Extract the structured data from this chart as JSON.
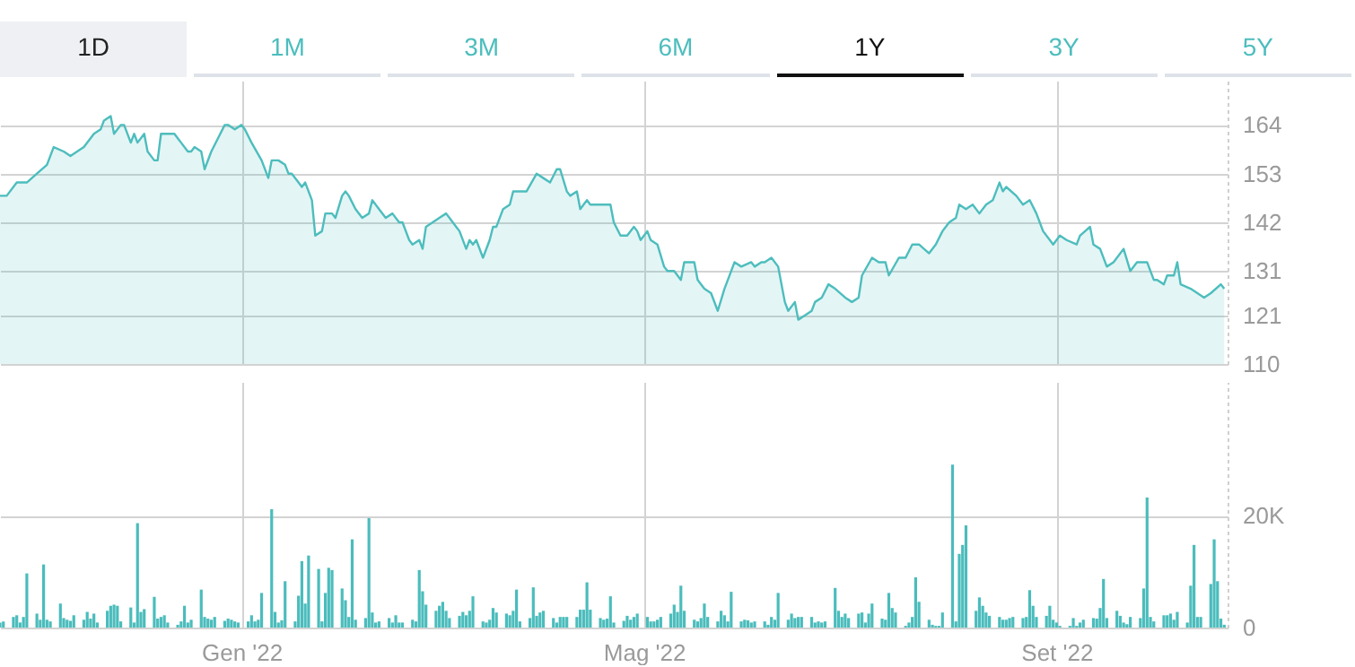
{
  "chart_data": [
    {
      "type": "area",
      "annotations": [
        "1D",
        "1M",
        "3M",
        "6M",
        "1Y",
        "3Y",
        "5Y"
      ],
      "color": "#4dbdbd",
      "x": [
        "2021-10-21",
        "2021-10-23",
        "2021-10-26",
        "2021-10-29",
        "2021-11-01",
        "2021-11-04",
        "2021-11-06",
        "2021-11-09",
        "2021-11-11",
        "2021-11-13",
        "2021-11-15",
        "2021-11-18",
        "2021-11-20",
        "2021-11-21",
        "2021-11-23",
        "2021-11-24",
        "2021-11-26",
        "2021-11-27",
        "2021-11-29",
        "2021-11-30",
        "2021-12-01",
        "2021-12-03",
        "2021-12-04",
        "2021-12-06",
        "2021-12-07",
        "2021-12-08",
        "2021-12-10",
        "2021-12-12",
        "2021-12-13",
        "2021-12-14",
        "2021-12-16",
        "2021-12-17",
        "2021-12-18",
        "2021-12-20",
        "2021-12-21",
        "2021-12-23",
        "2021-12-25",
        "2021-12-27",
        "2021-12-28",
        "2021-12-30",
        "2022-01-01",
        "2022-01-02",
        "2022-01-04",
        "2022-01-07",
        "2022-01-09",
        "2022-01-10",
        "2022-01-12",
        "2022-01-14",
        "2022-01-15",
        "2022-01-16",
        "2022-01-18",
        "2022-01-19",
        "2022-01-20",
        "2022-01-22",
        "2022-01-23",
        "2022-01-25",
        "2022-01-26",
        "2022-01-28",
        "2022-01-29",
        "2022-01-31",
        "2022-02-01",
        "2022-02-02",
        "2022-02-04",
        "2022-02-06",
        "2022-02-08",
        "2022-02-09",
        "2022-02-11",
        "2022-02-13",
        "2022-02-15",
        "2022-02-17",
        "2022-02-18",
        "2022-02-20",
        "2022-02-21",
        "2022-02-23",
        "2022-02-24",
        "2022-02-25",
        "2022-02-27",
        "2022-03-01",
        "2022-03-03",
        "2022-03-04",
        "2022-03-06",
        "2022-03-07",
        "2022-03-09",
        "2022-03-10",
        "2022-03-11",
        "2022-03-12",
        "2022-03-14",
        "2022-03-16",
        "2022-03-17",
        "2022-03-18",
        "2022-03-20",
        "2022-03-22",
        "2022-03-23",
        "2022-03-25",
        "2022-03-27",
        "2022-03-30",
        "2022-04-01",
        "2022-04-03",
        "2022-04-05",
        "2022-04-06",
        "2022-04-08",
        "2022-04-09",
        "2022-04-11",
        "2022-04-12",
        "2022-04-14",
        "2022-04-15",
        "2022-04-17",
        "2022-04-19",
        "2022-04-21",
        "2022-04-22",
        "2022-04-24",
        "2022-04-26",
        "2022-04-28",
        "2022-04-29",
        "2022-04-30",
        "2022-05-02",
        "2022-05-03",
        "2022-05-05",
        "2022-05-07",
        "2022-05-08",
        "2022-05-10",
        "2022-05-12",
        "2022-05-13",
        "2022-05-16",
        "2022-05-17",
        "2022-05-19",
        "2022-05-21",
        "2022-05-23",
        "2022-05-25",
        "2022-05-27",
        "2022-05-28",
        "2022-05-30",
        "2022-06-02",
        "2022-06-03",
        "2022-06-05",
        "2022-06-06",
        "2022-06-08",
        "2022-06-10",
        "2022-06-12",
        "2022-06-13",
        "2022-06-15",
        "2022-06-16",
        "2022-06-18",
        "2022-06-20",
        "2022-06-21",
        "2022-06-23",
        "2022-06-25",
        "2022-06-27",
        "2022-06-30",
        "2022-07-02",
        "2022-07-04",
        "2022-07-05",
        "2022-07-08",
        "2022-07-10",
        "2022-07-12",
        "2022-07-13",
        "2022-07-16",
        "2022-07-18",
        "2022-07-20",
        "2022-07-22",
        "2022-07-25",
        "2022-07-27",
        "2022-07-29",
        "2022-07-31",
        "2022-08-02",
        "2022-08-03",
        "2022-08-05",
        "2022-08-07",
        "2022-08-09",
        "2022-08-11",
        "2022-08-13",
        "2022-08-15",
        "2022-08-16",
        "2022-08-17",
        "2022-08-20",
        "2022-08-22",
        "2022-08-24",
        "2022-08-26",
        "2022-08-28",
        "2022-08-30",
        "2022-08-31",
        "2022-09-02",
        "2022-09-04",
        "2022-09-07",
        "2022-09-08",
        "2022-09-11",
        "2022-09-12",
        "2022-09-14",
        "2022-09-16",
        "2022-09-18",
        "2022-09-21",
        "2022-09-23",
        "2022-09-25",
        "2022-09-28",
        "2022-09-30",
        "2022-10-01",
        "2022-10-03",
        "2022-10-04",
        "2022-10-06",
        "2022-10-07",
        "2022-10-08",
        "2022-10-11",
        "2022-10-13",
        "2022-10-15",
        "2022-10-17",
        "2022-10-20",
        "2022-10-21"
      ],
      "values": [
        148,
        148,
        151,
        151,
        153,
        155,
        159,
        158,
        157,
        158,
        159,
        162,
        163,
        165,
        166,
        162,
        164,
        164,
        160,
        162,
        160,
        162,
        158,
        156,
        156,
        162,
        162,
        162,
        161,
        160,
        158,
        158,
        159,
        158,
        154,
        158,
        161,
        164,
        164,
        163,
        164,
        163,
        160,
        156,
        152,
        156,
        156,
        155,
        153,
        153,
        151,
        150,
        151,
        147,
        139,
        140,
        144,
        144,
        143,
        148,
        149,
        148,
        145,
        143,
        144,
        147,
        145,
        143,
        144,
        142,
        142,
        138,
        137,
        138,
        136,
        141,
        142,
        143,
        144,
        143,
        141,
        140,
        136,
        138,
        137,
        138,
        134,
        138,
        141,
        141,
        145,
        146,
        149,
        149,
        149,
        153,
        152,
        151,
        154,
        154,
        149,
        148,
        149,
        145,
        147,
        146,
        146,
        146,
        146,
        142,
        139,
        139,
        141,
        140,
        138,
        140,
        138,
        137,
        132,
        131,
        131,
        129,
        133,
        133,
        129,
        127,
        126,
        122,
        127,
        131,
        133,
        132,
        133,
        132,
        133,
        133,
        134,
        132,
        124,
        122,
        124,
        120,
        121,
        122,
        124,
        125,
        128,
        127,
        125,
        124,
        125,
        130,
        134,
        133,
        133,
        130,
        134,
        134,
        137,
        137,
        135,
        137,
        140,
        142,
        143,
        146,
        145,
        146,
        144,
        146,
        147,
        151,
        149,
        150,
        148,
        146,
        147,
        144,
        140,
        138,
        137,
        139,
        138,
        137,
        139,
        141,
        137,
        136,
        132,
        133,
        136,
        131,
        133,
        133,
        129,
        129,
        128,
        130,
        130,
        133,
        128,
        127,
        126,
        125,
        126,
        128,
        127
      ],
      "xlim": [
        "2021-10-21",
        "2022-10-22"
      ],
      "xticks": [
        {
          "value": "2022-01-01",
          "label": null
        },
        {
          "value": "2022-05-01",
          "label": null
        },
        {
          "value": "2022-09-01",
          "label": null
        }
      ],
      "ylim": [
        110,
        174
      ],
      "yticks": [
        110,
        121,
        131,
        142,
        153,
        164
      ],
      "grid": true,
      "tick_labels": "y"
    },
    {
      "type": "bar",
      "color": "#4bbcbc",
      "x": [
        "2021-10-21",
        "2021-10-22",
        "2021-10-25",
        "2021-10-26",
        "2021-10-27",
        "2021-10-28",
        "2021-10-29",
        "2021-11-01",
        "2021-11-02",
        "2021-11-03",
        "2021-11-04",
        "2021-11-05",
        "2021-11-08",
        "2021-11-09",
        "2021-11-10",
        "2021-11-11",
        "2021-11-12",
        "2021-11-15",
        "2021-11-16",
        "2021-11-17",
        "2021-11-18",
        "2021-11-19",
        "2021-11-22",
        "2021-11-23",
        "2021-11-24",
        "2021-11-25",
        "2021-11-26",
        "2021-11-29",
        "2021-11-30",
        "2021-12-01",
        "2021-12-02",
        "2021-12-03",
        "2021-12-06",
        "2021-12-07",
        "2021-12-08",
        "2021-12-09",
        "2021-12-10",
        "2021-12-13",
        "2021-12-14",
        "2021-12-15",
        "2021-12-16",
        "2021-12-17",
        "2021-12-20",
        "2021-12-21",
        "2021-12-22",
        "2021-12-23",
        "2021-12-24",
        "2021-12-27",
        "2021-12-28",
        "2021-12-29",
        "2021-12-30",
        "2021-12-31",
        "2022-01-03",
        "2022-01-04",
        "2022-01-05",
        "2022-01-06",
        "2022-01-07",
        "2022-01-10",
        "2022-01-11",
        "2022-01-12",
        "2022-01-13",
        "2022-01-14",
        "2022-01-17",
        "2022-01-18",
        "2022-01-19",
        "2022-01-20",
        "2022-01-21",
        "2022-01-24",
        "2022-01-25",
        "2022-01-26",
        "2022-01-27",
        "2022-01-28",
        "2022-01-31",
        "2022-02-01",
        "2022-02-02",
        "2022-02-03",
        "2022-02-04",
        "2022-02-07",
        "2022-02-08",
        "2022-02-09",
        "2022-02-10",
        "2022-02-11",
        "2022-02-14",
        "2022-02-15",
        "2022-02-16",
        "2022-02-17",
        "2022-02-18",
        "2022-02-21",
        "2022-02-22",
        "2022-02-23",
        "2022-02-24",
        "2022-02-25",
        "2022-02-28",
        "2022-03-01",
        "2022-03-02",
        "2022-03-03",
        "2022-03-04",
        "2022-03-07",
        "2022-03-08",
        "2022-03-09",
        "2022-03-10",
        "2022-03-11",
        "2022-03-14",
        "2022-03-15",
        "2022-03-16",
        "2022-03-17",
        "2022-03-18",
        "2022-03-21",
        "2022-03-22",
        "2022-03-23",
        "2022-03-24",
        "2022-03-25",
        "2022-03-28",
        "2022-03-29",
        "2022-03-30",
        "2022-03-31",
        "2022-04-01",
        "2022-04-04",
        "2022-04-05",
        "2022-04-06",
        "2022-04-07",
        "2022-04-08",
        "2022-04-11",
        "2022-04-12",
        "2022-04-13",
        "2022-04-14",
        "2022-04-15",
        "2022-04-18",
        "2022-04-19",
        "2022-04-20",
        "2022-04-21",
        "2022-04-22",
        "2022-04-25",
        "2022-04-26",
        "2022-04-27",
        "2022-04-28",
        "2022-04-29",
        "2022-05-02",
        "2022-05-03",
        "2022-05-04",
        "2022-05-05",
        "2022-05-06",
        "2022-05-09",
        "2022-05-10",
        "2022-05-11",
        "2022-05-12",
        "2022-05-13",
        "2022-05-16",
        "2022-05-17",
        "2022-05-18",
        "2022-05-19",
        "2022-05-20",
        "2022-05-23",
        "2022-05-24",
        "2022-05-25",
        "2022-05-26",
        "2022-05-27",
        "2022-05-30",
        "2022-05-31",
        "2022-06-01",
        "2022-06-02",
        "2022-06-03",
        "2022-06-06",
        "2022-06-07",
        "2022-06-08",
        "2022-06-09",
        "2022-06-10",
        "2022-06-13",
        "2022-06-14",
        "2022-06-15",
        "2022-06-16",
        "2022-06-17",
        "2022-06-20",
        "2022-06-21",
        "2022-06-22",
        "2022-06-23",
        "2022-06-24",
        "2022-06-27",
        "2022-06-28",
        "2022-06-29",
        "2022-06-30",
        "2022-07-01",
        "2022-07-04",
        "2022-07-05",
        "2022-07-06",
        "2022-07-07",
        "2022-07-08",
        "2022-07-11",
        "2022-07-12",
        "2022-07-13",
        "2022-07-14",
        "2022-07-15",
        "2022-07-18",
        "2022-07-19",
        "2022-07-20",
        "2022-07-21",
        "2022-07-22",
        "2022-07-25",
        "2022-07-26",
        "2022-07-27",
        "2022-07-28",
        "2022-07-29",
        "2022-08-01",
        "2022-08-02",
        "2022-08-03",
        "2022-08-04",
        "2022-08-05",
        "2022-08-08",
        "2022-08-09",
        "2022-08-10",
        "2022-08-11",
        "2022-08-12",
        "2022-08-15",
        "2022-08-16",
        "2022-08-17",
        "2022-08-18",
        "2022-08-19",
        "2022-08-22",
        "2022-08-23",
        "2022-08-24",
        "2022-08-25",
        "2022-08-26",
        "2022-08-29",
        "2022-08-30",
        "2022-08-31",
        "2022-09-01",
        "2022-09-02",
        "2022-09-05",
        "2022-09-06",
        "2022-09-07",
        "2022-09-08",
        "2022-09-09",
        "2022-09-12",
        "2022-09-13",
        "2022-09-14",
        "2022-09-15",
        "2022-09-16",
        "2022-09-19",
        "2022-09-20",
        "2022-09-21",
        "2022-09-22",
        "2022-09-23",
        "2022-09-26",
        "2022-09-27",
        "2022-09-28",
        "2022-09-29",
        "2022-09-30",
        "2022-10-03",
        "2022-10-04",
        "2022-10-05",
        "2022-10-06",
        "2022-10-07",
        "2022-10-10",
        "2022-10-11",
        "2022-10-12",
        "2022-10-13",
        "2022-10-14",
        "2022-10-17",
        "2022-10-18",
        "2022-10-19",
        "2022-10-20",
        "2022-10-21"
      ],
      "values": [
        900,
        1100,
        1900,
        2200,
        900,
        1900,
        9700,
        2500,
        1400,
        11300,
        1400,
        1100,
        4300,
        1700,
        1400,
        1200,
        2200,
        1400,
        2800,
        1600,
        2500,
        900,
        3000,
        3900,
        4100,
        3900,
        1100,
        3600,
        900,
        18700,
        2800,
        3300,
        5500,
        1600,
        1900,
        2200,
        900,
        500,
        1100,
        3900,
        900,
        1400,
        6800,
        1900,
        1600,
        1400,
        1900,
        1200,
        1600,
        1400,
        1100,
        900,
        1100,
        2200,
        1100,
        1400,
        6200,
        21200,
        2800,
        900,
        1300,
        8300,
        1100,
        5700,
        11900,
        4300,
        12900,
        10500,
        1100,
        6200,
        10700,
        10300,
        7000,
        4900,
        1900,
        15800,
        1400,
        1700,
        19600,
        2700,
        900,
        1100,
        1700,
        900,
        2200,
        900,
        900,
        1400,
        1100,
        10300,
        6500,
        4100,
        3000,
        3900,
        4600,
        3000,
        1700,
        2100,
        2800,
        2200,
        3000,
        5600,
        1100,
        900,
        1400,
        3500,
        2700,
        2500,
        2200,
        3000,
        6800,
        1100,
        1700,
        7200,
        2100,
        2700,
        3000,
        1700,
        900,
        1900,
        1900,
        1900,
        1900,
        3200,
        3200,
        8100,
        3200,
        1700,
        1400,
        1600,
        5600,
        900,
        1200,
        2100,
        1400,
        1900,
        2500,
        1900,
        1100,
        1100,
        1400,
        1900,
        2500,
        4100,
        2800,
        7500,
        3000,
        1400,
        1100,
        1700,
        4300,
        1900,
        1100,
        3000,
        2200,
        1100,
        6400,
        1100,
        1400,
        1300,
        900,
        1100,
        1100,
        500,
        1900,
        1400,
        6200,
        1400,
        2500,
        1700,
        1900,
        1900,
        1900,
        900,
        1100,
        900,
        1100,
        7100,
        3000,
        1900,
        2500,
        1700,
        2500,
        2700,
        900,
        2500,
        4300,
        1600,
        1400,
        6200,
        3500,
        2700,
        300,
        900,
        1900,
        9000,
        4600,
        1400,
        500,
        300,
        300,
        2700,
        29200,
        1100,
        13200,
        14800,
        18300,
        3000,
        5400,
        3900,
        2700,
        2100,
        1900,
        1400,
        1400,
        1700,
        1900,
        1700,
        1900,
        6700,
        3900,
        1900,
        2100,
        3900,
        1400,
        900,
        300,
        300,
        1700,
        300,
        900,
        1400,
        1700,
        1600,
        3500,
        8700,
        1700,
        3000,
        2100,
        900,
        600,
        1900,
        1700,
        7000,
        23300,
        1900,
        1100,
        2200,
        2200,
        2500,
        1400,
        2800,
        900,
        7500,
        14800,
        1900,
        1900,
        7800,
        15800,
        8300,
        1600,
        500
      ],
      "xlim": [
        "2021-10-21",
        "2022-10-22"
      ],
      "xticks": [
        {
          "value": "2022-01-01",
          "label": "Gen '22"
        },
        {
          "value": "2022-05-01",
          "label": "Mag '22"
        },
        {
          "value": "2022-09-01",
          "label": "Set '22"
        }
      ],
      "ylim": [
        0,
        44000
      ],
      "yticks": [
        0,
        {
          "value": 20000,
          "label": "20K"
        }
      ],
      "grid": true
    }
  ]
}
